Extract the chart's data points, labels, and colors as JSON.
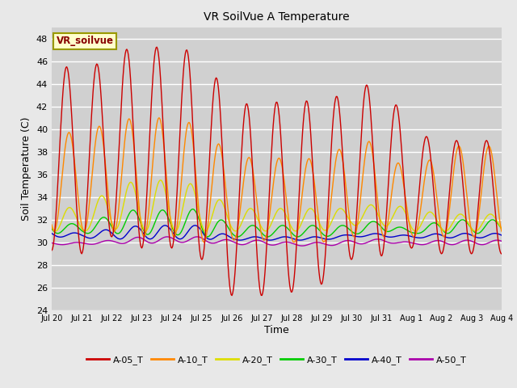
{
  "title": "VR SoilVue A Temperature",
  "ylabel": "Soil Temperature (C)",
  "xlabel": "Time",
  "legend_label": "VR_soilvue",
  "ylim": [
    24,
    49
  ],
  "yticks": [
    24,
    26,
    28,
    30,
    32,
    34,
    36,
    38,
    40,
    42,
    44,
    46,
    48
  ],
  "xtick_labels": [
    "Jul 20",
    "Jul 21",
    "Jul 22",
    "Jul 23",
    "Jul 24",
    "Jul 25",
    "Jul 26",
    "Jul 27",
    "Jul 28",
    "Jul 29",
    "Jul 30",
    "Jul 31",
    "Aug 1",
    "Aug 2",
    "Aug 3",
    "Aug 4"
  ],
  "bg_color": "#e8e8e8",
  "plot_bg_color": "#d0d0d0",
  "series": {
    "A-05_T": {
      "color": "#cc0000",
      "day_peaks": [
        46.3,
        44.7,
        46.8,
        47.3,
        47.2,
        46.8,
        42.2,
        42.3,
        42.5,
        42.5,
        43.3,
        44.5,
        39.7,
        39.0,
        39.0
      ],
      "day_mins": [
        29.3,
        29.0,
        30.5,
        29.5,
        29.5,
        28.5,
        25.3,
        25.3,
        25.6,
        26.3,
        28.5,
        28.8,
        29.5,
        29.0,
        29.0
      ]
    },
    "A-10_T": {
      "color": "#ff8800",
      "day_peaks": [
        40.0,
        39.5,
        40.8,
        41.0,
        41.0,
        40.3,
        37.5,
        37.5,
        37.4,
        37.4,
        38.8,
        39.0,
        35.5,
        38.5,
        38.5
      ],
      "day_mins": [
        31.0,
        31.0,
        31.0,
        30.5,
        30.5,
        30.0,
        30.2,
        30.2,
        30.0,
        30.0,
        30.5,
        30.5,
        30.5,
        30.5,
        30.5
      ]
    },
    "A-20_T": {
      "color": "#dddd00",
      "day_peaks": [
        34.0,
        32.5,
        35.0,
        35.5,
        35.5,
        35.0,
        33.0,
        33.0,
        33.0,
        33.0,
        33.0,
        33.5,
        33.0,
        32.5,
        32.5
      ],
      "day_mins": [
        31.0,
        31.0,
        31.2,
        31.0,
        31.0,
        31.0,
        31.0,
        31.0,
        31.0,
        31.0,
        31.5,
        31.5,
        31.0,
        31.0,
        31.0
      ]
    },
    "A-30_T": {
      "color": "#00cc00",
      "day_peaks": [
        32.0,
        31.5,
        32.5,
        33.0,
        32.8,
        33.0,
        31.5,
        31.5,
        31.5,
        31.5,
        31.5,
        32.0,
        31.0,
        32.0,
        32.0
      ],
      "day_mins": [
        30.8,
        30.8,
        30.8,
        30.7,
        30.7,
        30.5,
        30.5,
        30.5,
        30.5,
        30.5,
        30.7,
        31.0,
        30.8,
        30.8,
        30.8
      ]
    },
    "A-40_T": {
      "color": "#0000cc",
      "day_peaks": [
        31.0,
        30.8,
        31.2,
        31.5,
        31.5,
        31.5,
        30.5,
        30.5,
        30.5,
        30.5,
        30.7,
        30.8,
        30.6,
        30.8,
        30.8
      ],
      "day_mins": [
        30.5,
        30.4,
        30.3,
        30.3,
        30.3,
        30.3,
        30.2,
        30.2,
        30.2,
        30.2,
        30.5,
        30.5,
        30.4,
        30.4,
        30.4
      ]
    },
    "A-50_T": {
      "color": "#aa00aa",
      "day_peaks": [
        30.0,
        30.0,
        30.2,
        30.5,
        30.5,
        30.5,
        30.2,
        30.2,
        30.0,
        30.0,
        30.2,
        30.3,
        30.0,
        30.2,
        30.2
      ],
      "day_mins": [
        29.8,
        29.8,
        29.9,
        29.9,
        30.0,
        30.0,
        29.8,
        29.8,
        29.7,
        29.7,
        29.8,
        30.0,
        29.8,
        29.8,
        29.8
      ]
    }
  },
  "series_order": [
    "A-05_T",
    "A-10_T",
    "A-20_T",
    "A-30_T",
    "A-40_T",
    "A-50_T"
  ],
  "phase_offsets": {
    "A-05_T": 0.0,
    "A-10_T": 0.08,
    "A-20_T": 0.13,
    "A-30_T": 0.2,
    "A-40_T": 0.28,
    "A-50_T": 0.35
  }
}
